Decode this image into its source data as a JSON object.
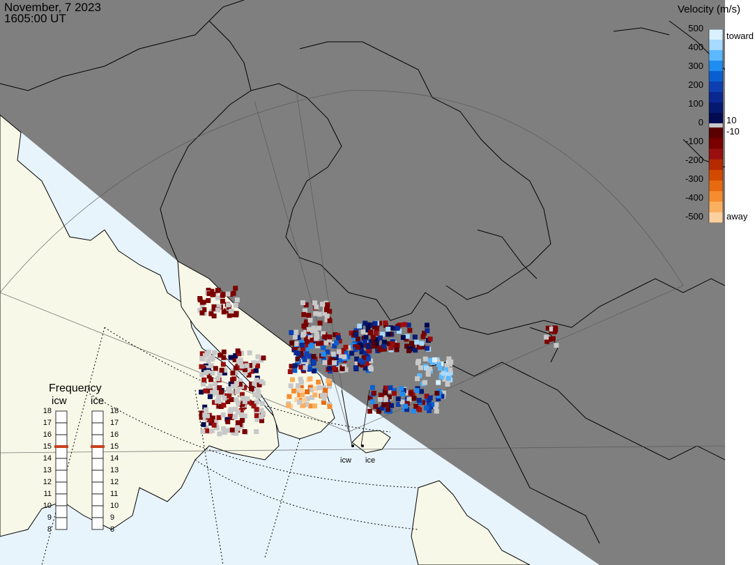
{
  "header": {
    "date": "November, 7 2023",
    "time": "1605:00 UT"
  },
  "velocity_scale": {
    "title": "Velocity (m/s)",
    "ticks": [
      "500",
      "400",
      "300",
      "200",
      "100",
      "0",
      "-100",
      "-200",
      "-300",
      "-400",
      "-500"
    ],
    "near_zero_top": "10",
    "near_zero_bottom": "-10",
    "toward_label": "toward",
    "away_label": "away",
    "toward_colors": [
      "#d9f0ff",
      "#a6daff",
      "#5db8ff",
      "#1f8cf0",
      "#0a5fd0",
      "#0d3fb0",
      "#0a2890",
      "#061970",
      "#020a50"
    ],
    "away_colors": [
      "#5a0000",
      "#7a0000",
      "#990e0e",
      "#b52a00",
      "#d24a00",
      "#e86a10",
      "#f58d30",
      "#fbb060",
      "#fdd0a0"
    ],
    "zero_color": "#c8c8c8"
  },
  "frequency_panel": {
    "title": "Frequency",
    "columns": [
      "icw",
      "ice"
    ],
    "levels": [
      "18",
      "17",
      "16",
      "15",
      "14",
      "13",
      "12",
      "11",
      "10",
      "9",
      "8"
    ],
    "icw_value": 15,
    "ice_value": 15,
    "marker_color": "#c84020"
  },
  "radars": {
    "labels": [
      "icw",
      "ice"
    ]
  },
  "colors": {
    "night": "#7f7f7f",
    "day_land": "#f8f8e8",
    "day_ocean": "#e8f4fc",
    "ground_scatter": "#c8c8c8"
  }
}
